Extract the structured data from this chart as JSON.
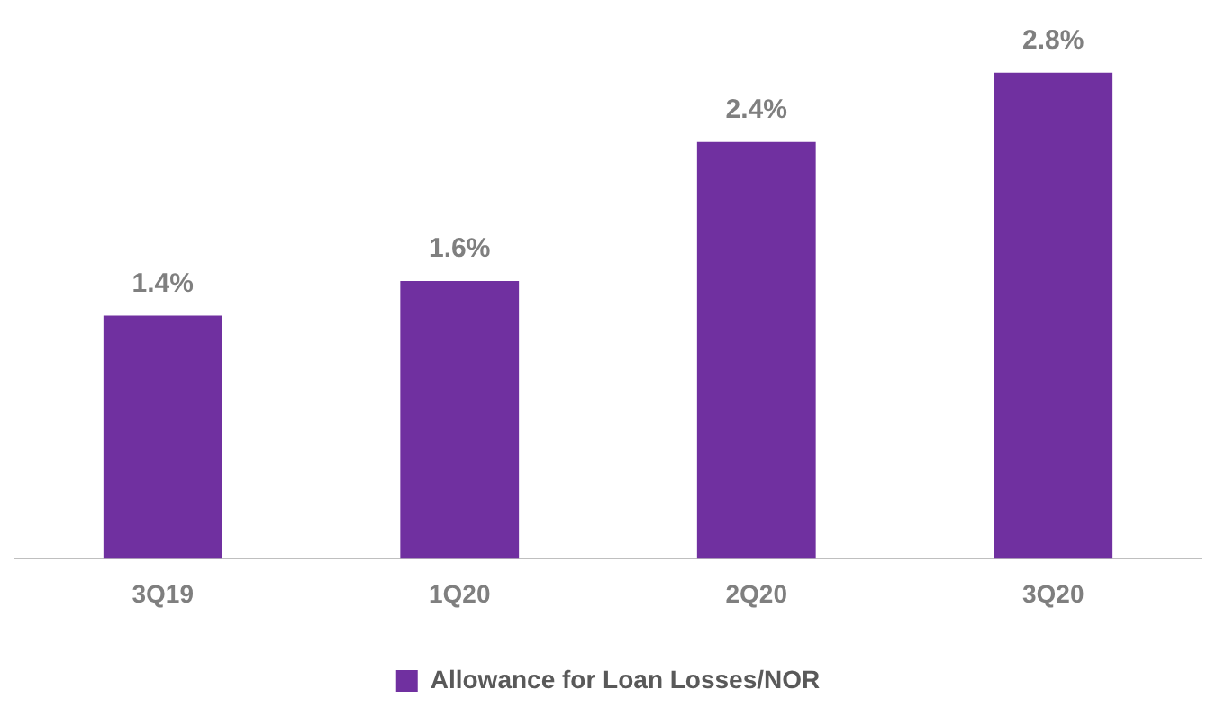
{
  "chart_data": {
    "type": "bar",
    "categories": [
      "3Q19",
      "1Q20",
      "2Q20",
      "3Q20"
    ],
    "tick_labels": "x",
    "series": [
      {
        "name": "Allowance for Loan Losses/NOR",
        "color": "#7030a0",
        "values": [
          1.4,
          1.6,
          2.4,
          2.8
        ],
        "value_labels": [
          "1.4%",
          "1.6%",
          "2.4%",
          "2.8%"
        ]
      }
    ],
    "legend": "bottom"
  }
}
